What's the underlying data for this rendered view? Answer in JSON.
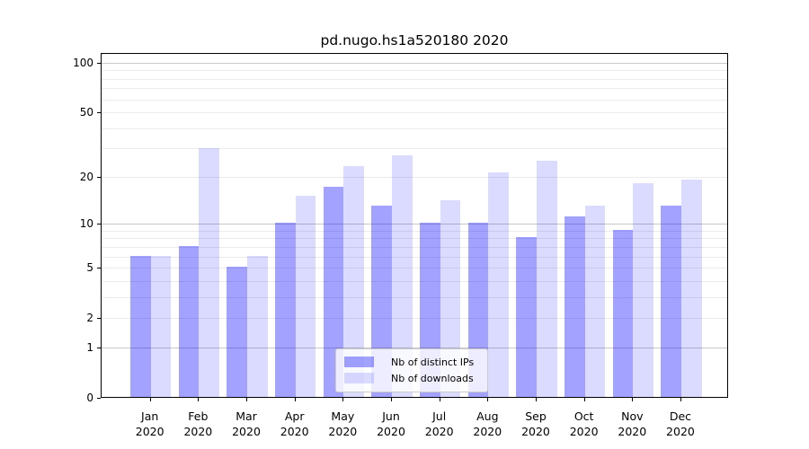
{
  "title": "pd.nugo.hs1a520180 2020",
  "chart_data": {
    "type": "bar",
    "title": "pd.nugo.hs1a520180 2020",
    "xlabel": "",
    "ylabel": "",
    "x_tick_months": [
      "Jan",
      "Feb",
      "Mar",
      "Apr",
      "May",
      "Jun",
      "Jul",
      "Aug",
      "Sep",
      "Oct",
      "Nov",
      "Dec"
    ],
    "x_tick_year": "2020",
    "categories": [
      "Jan 2020",
      "Feb 2020",
      "Mar 2020",
      "Apr 2020",
      "May 2020",
      "Jun 2020",
      "Jul 2020",
      "Aug 2020",
      "Sep 2020",
      "Oct 2020",
      "Nov 2020",
      "Dec 2020"
    ],
    "series": [
      {
        "name": "Nb of distinct IPs",
        "color": "rgba(0,0,255,0.36)",
        "values": [
          6,
          7,
          5,
          10,
          17,
          13,
          10,
          10,
          8,
          11,
          9,
          13
        ]
      },
      {
        "name": "Nb of downloads",
        "color": "rgba(0,0,255,0.14)",
        "values": [
          6,
          30,
          6,
          15,
          23,
          27,
          14,
          21,
          25,
          13,
          18,
          19
        ]
      }
    ],
    "yscale": "log1p",
    "ylim": [
      0,
      115
    ],
    "yticks": [
      0,
      1,
      2,
      5,
      10,
      20,
      50,
      100
    ],
    "ytick_labels": [
      "0",
      "1",
      "2",
      "5",
      "10",
      "20",
      "50",
      "100"
    ],
    "grid": {
      "major": [
        1,
        10,
        100
      ],
      "minor": [
        2,
        3,
        4,
        5,
        6,
        7,
        8,
        9,
        20,
        30,
        40,
        50,
        60,
        70,
        80,
        90
      ]
    },
    "legend_position": "lower center",
    "grid_on": true
  },
  "colors": {
    "bar_distinct_ips": "rgba(0,0,255,0.36)",
    "bar_downloads": "rgba(0,0,255,0.14)",
    "grid_minor": "#ebebeb",
    "grid_major": "#c9c9c9",
    "axis": "#000000",
    "legend_border": "#cccccc",
    "legend_background": "rgba(255,255,255,0.8)"
  }
}
